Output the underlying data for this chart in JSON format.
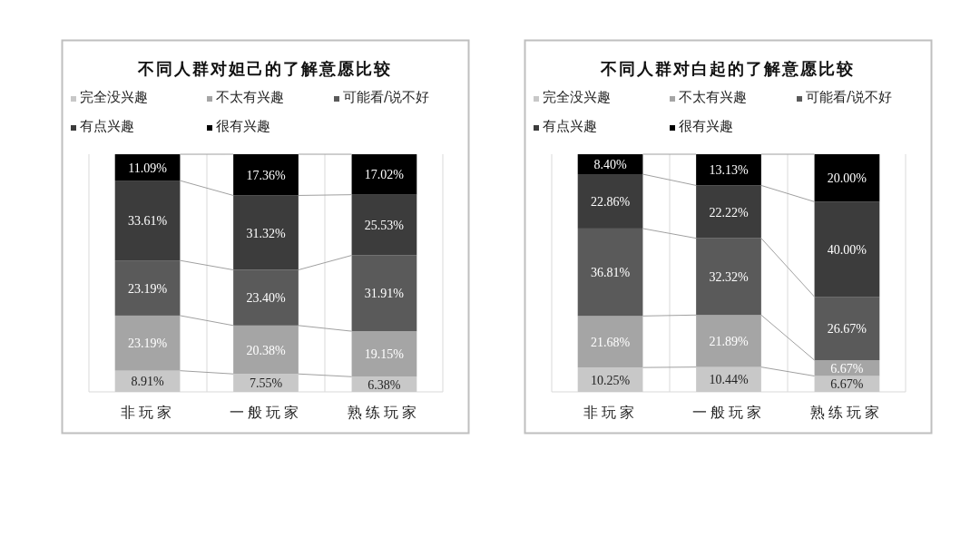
{
  "chart_data": [
    {
      "type": "bar",
      "stacked": true,
      "title": "不同人群对妲己的了解意愿比较",
      "categories": [
        "非玩家",
        "一般玩家",
        "熟练玩家"
      ],
      "tick_labels": "x",
      "grid": "x",
      "legend": "top",
      "series": [
        {
          "name": "完全没兴趣",
          "color": "#c8c8c8",
          "values": [
            8.91,
            7.55,
            6.38
          ],
          "value_labels": [
            "8.91%",
            "7.55%",
            "6.38%"
          ]
        },
        {
          "name": "不太有兴趣",
          "color": "#a5a5a5",
          "values": [
            23.19,
            20.38,
            19.15
          ],
          "value_labels": [
            "23.19%",
            "20.38%",
            "19.15%"
          ]
        },
        {
          "name": "可能看/说不好",
          "color": "#5a5a5a",
          "values": [
            23.19,
            23.4,
            31.91
          ],
          "value_labels": [
            "23.19%",
            "23.40%",
            "31.91%"
          ]
        },
        {
          "name": "有点兴趣",
          "color": "#3c3c3c",
          "values": [
            33.61,
            31.32,
            25.53
          ],
          "value_labels": [
            "33.61%",
            "31.32%",
            "25.53%"
          ]
        },
        {
          "name": "很有兴趣",
          "color": "#000000",
          "values": [
            11.09,
            17.36,
            17.02
          ],
          "value_labels": [
            "11.09%",
            "17.36%",
            "17.02%"
          ]
        }
      ]
    },
    {
      "type": "bar",
      "stacked": true,
      "title": "不同人群对白起的了解意愿比较",
      "categories": [
        "非玩家",
        "一般玩家",
        "熟练玩家"
      ],
      "tick_labels": "x",
      "grid": "x",
      "legend": "top",
      "series": [
        {
          "name": "完全没兴趣",
          "color": "#c8c8c8",
          "values": [
            10.25,
            10.44,
            6.67
          ],
          "value_labels": [
            "10.25%",
            "10.44%",
            "6.67%"
          ]
        },
        {
          "name": "不太有兴趣",
          "color": "#a5a5a5",
          "values": [
            21.68,
            21.89,
            6.67
          ],
          "value_labels": [
            "21.68%",
            "21.89%",
            "6.67%"
          ]
        },
        {
          "name": "可能看/说不好",
          "color": "#5a5a5a",
          "values": [
            36.81,
            32.32,
            26.67
          ],
          "value_labels": [
            "36.81%",
            "32.32%",
            "26.67%"
          ]
        },
        {
          "name": "有点兴趣",
          "color": "#3c3c3c",
          "values": [
            22.86,
            22.22,
            40.0
          ],
          "value_labels": [
            "22.86%",
            "22.22%",
            "40.00%"
          ]
        },
        {
          "name": "很有兴趣",
          "color": "#000000",
          "values": [
            8.4,
            13.13,
            20.0
          ],
          "value_labels": [
            "8.40%",
            "13.13%",
            "20.00%"
          ]
        }
      ]
    }
  ]
}
